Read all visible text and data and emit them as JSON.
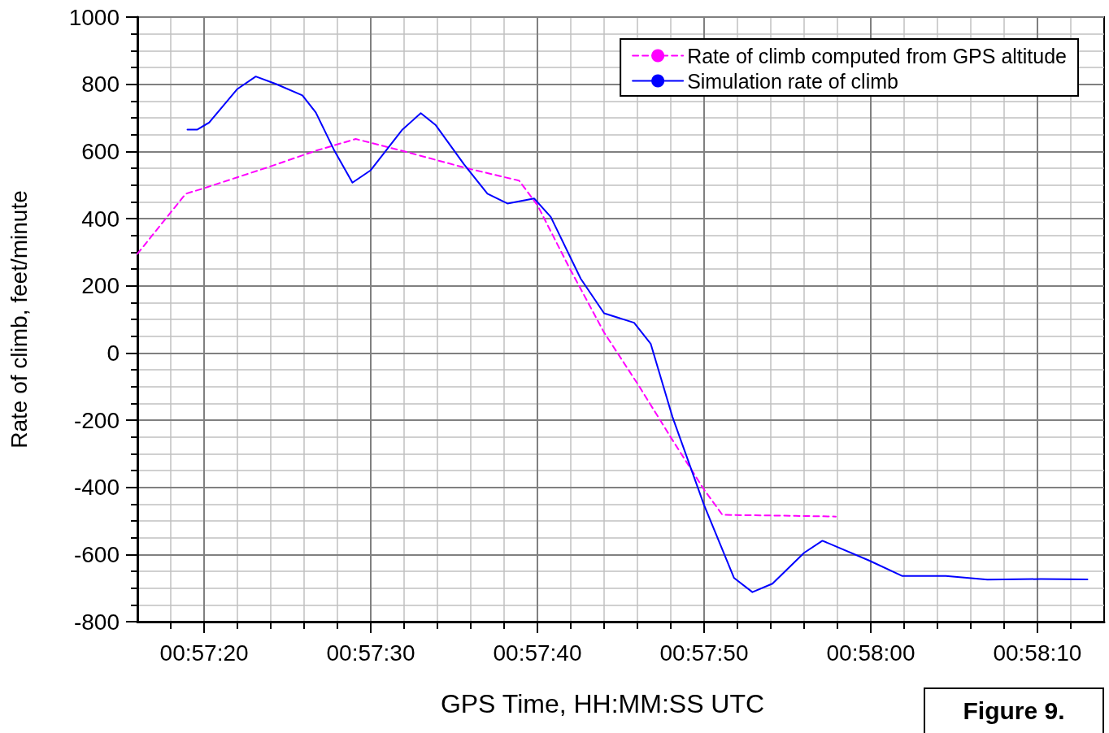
{
  "chart_data": {
    "type": "line",
    "xlabel": "GPS Time, HH:MM:SS UTC",
    "ylabel": "Rate of climb, feet/minute",
    "annotations": [
      "Figure 9."
    ],
    "legend": "top right",
    "grid": true,
    "marker": "none",
    "xlim": [
      0.954444,
      0.970556
    ],
    "xticks": [
      {
        "value": 0.955,
        "label": null
      },
      {
        "value": 0.955556,
        "label": "00:57:20"
      },
      {
        "value": 0.956111,
        "label": null
      },
      {
        "value": 0.956667,
        "label": null
      },
      {
        "value": 0.957222,
        "label": null
      },
      {
        "value": 0.957778,
        "label": null
      },
      {
        "value": 0.958333,
        "label": "00:57:30"
      },
      {
        "value": 0.958889,
        "label": null
      },
      {
        "value": 0.959444,
        "label": null
      },
      {
        "value": 0.96,
        "label": null
      },
      {
        "value": 0.960556,
        "label": null
      },
      {
        "value": 0.961111,
        "label": "00:57:40"
      },
      {
        "value": 0.961667,
        "label": null
      },
      {
        "value": 0.962222,
        "label": null
      },
      {
        "value": 0.962778,
        "label": null
      },
      {
        "value": 0.963333,
        "label": null
      },
      {
        "value": 0.963889,
        "label": "00:57:50"
      },
      {
        "value": 0.964444,
        "label": null
      },
      {
        "value": 0.965,
        "label": null
      },
      {
        "value": 0.965556,
        "label": null
      },
      {
        "value": 0.966111,
        "label": null
      },
      {
        "value": 0.966667,
        "label": "00:58:00"
      },
      {
        "value": 0.967222,
        "label": null
      },
      {
        "value": 0.967778,
        "label": null
      },
      {
        "value": 0.968333,
        "label": null
      },
      {
        "value": 0.968889,
        "label": null
      },
      {
        "value": 0.969444,
        "label": "00:58:10"
      },
      {
        "value": 0.97,
        "label": null
      }
    ],
    "ylim": [
      -800,
      1000
    ],
    "yticks": [
      -800,
      {
        "value": -750,
        "label": null
      },
      {
        "value": -700,
        "label": null
      },
      {
        "value": -650,
        "label": null
      },
      -600,
      {
        "value": -550,
        "label": null
      },
      {
        "value": -500,
        "label": null
      },
      {
        "value": -450,
        "label": null
      },
      -400,
      {
        "value": -350,
        "label": null
      },
      {
        "value": -300,
        "label": null
      },
      {
        "value": -250,
        "label": null
      },
      -200,
      {
        "value": -150,
        "label": null
      },
      {
        "value": -100,
        "label": null
      },
      {
        "value": -50,
        "label": null
      },
      0,
      {
        "value": 50,
        "label": null
      },
      {
        "value": 100,
        "label": null
      },
      {
        "value": 150,
        "label": null
      },
      200,
      {
        "value": 250,
        "label": null
      },
      {
        "value": 300,
        "label": null
      },
      {
        "value": 350,
        "label": null
      },
      400,
      {
        "value": 450,
        "label": null
      },
      {
        "value": 500,
        "label": null
      },
      {
        "value": 550,
        "label": null
      },
      600,
      {
        "value": 650,
        "label": null
      },
      {
        "value": 700,
        "label": null
      },
      {
        "value": 750,
        "label": null
      },
      800,
      {
        "value": 850,
        "label": null
      },
      {
        "value": 900,
        "label": null
      },
      {
        "value": 950,
        "label": null
      },
      1000
    ],
    "series": [
      {
        "name": "Rate of climb computed from GPS altitude",
        "color": "#ff00ff",
        "line_style": "dashed",
        "x": [
          0.954444,
          0.95525,
          0.955528,
          0.956639,
          0.957417,
          0.958083,
          0.958917,
          0.959889,
          0.960806,
          0.961111,
          0.961639,
          0.962222,
          0.962806,
          0.963361,
          0.963889,
          0.964194,
          0.965417,
          0.966083
        ],
        "values": [
          295,
          474,
          489,
          554,
          602,
          637,
          599,
          552,
          513,
          440,
          255,
          61,
          -99,
          -259,
          -407,
          -482,
          -485,
          -487
        ]
      },
      {
        "name": "Simulation rate of climb",
        "color": "#0000ff",
        "line_style": "solid",
        "x": [
          0.955278,
          0.955444,
          0.955639,
          0.956111,
          0.956417,
          0.95675,
          0.957194,
          0.957417,
          0.957722,
          0.958028,
          0.958333,
          0.958861,
          0.959167,
          0.959417,
          0.959889,
          0.960278,
          0.960611,
          0.961056,
          0.961333,
          0.961833,
          0.962222,
          0.962722,
          0.963,
          0.963361,
          0.963889,
          0.964389,
          0.964694,
          0.965028,
          0.965556,
          0.965861,
          0.966639,
          0.967194,
          0.967917,
          0.968611,
          0.9695,
          0.970278
        ],
        "values": [
          665,
          665,
          686,
          786,
          823,
          801,
          767,
          716,
          604,
          507,
          544,
          665,
          714,
          678,
          561,
          474,
          445,
          460,
          405,
          221,
          118,
          90,
          27,
          -190,
          -453,
          -670,
          -712,
          -687,
          -595,
          -559,
          -618,
          -664,
          -664,
          -675,
          -673,
          -674
        ]
      }
    ]
  }
}
